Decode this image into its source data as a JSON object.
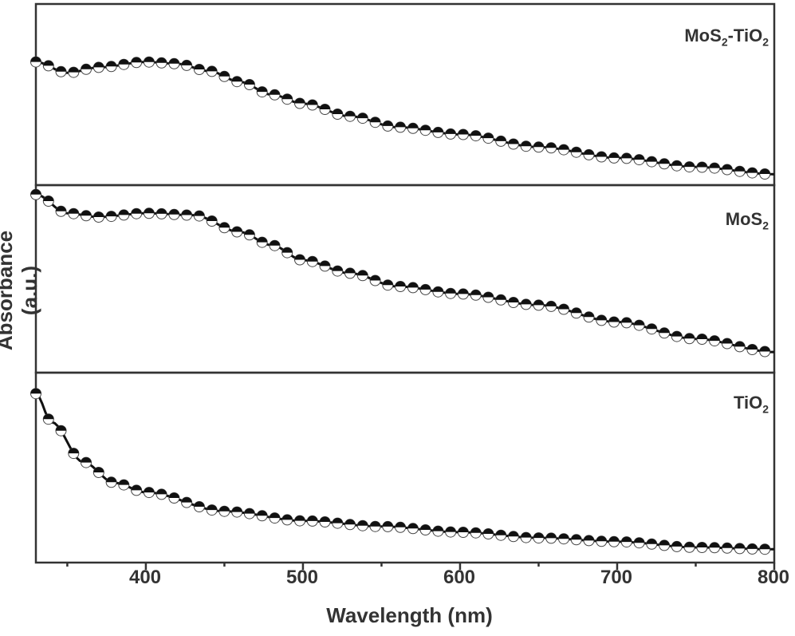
{
  "chart_data": {
    "type": "line",
    "title": "",
    "xlabel": "Wavelength (nm)",
    "ylabel": "Absorbance (a.u.)",
    "xlim": [
      330,
      800
    ],
    "x_ticks": [
      400,
      500,
      600,
      700,
      800
    ],
    "x_minor_ticks": [
      350,
      450,
      550,
      650,
      750
    ],
    "grid": false,
    "layout": "three vertically stacked panels sharing x-axis, no y tick labels",
    "marker": "half-filled circle (black top, white bottom)",
    "panels": [
      {
        "name": "MoS2-TiO2",
        "label_main": "MoS",
        "label_sub1": "2",
        "label_mid": "-TiO",
        "label_sub2": "2",
        "x": [
          330,
          350,
          370,
          400,
          420,
          440,
          460,
          480,
          500,
          530,
          560,
          600,
          650,
          700,
          750,
          800
        ],
        "values": [
          0.68,
          0.62,
          0.65,
          0.68,
          0.67,
          0.63,
          0.57,
          0.5,
          0.45,
          0.38,
          0.32,
          0.28,
          0.21,
          0.15,
          0.1,
          0.06
        ]
      },
      {
        "name": "MoS2",
        "label_main": "MoS",
        "label_sub1": "2",
        "x": [
          330,
          350,
          370,
          400,
          430,
          460,
          480,
          500,
          530,
          560,
          600,
          650,
          700,
          750,
          800
        ],
        "values": [
          0.95,
          0.85,
          0.83,
          0.85,
          0.84,
          0.75,
          0.68,
          0.6,
          0.53,
          0.46,
          0.42,
          0.36,
          0.27,
          0.18,
          0.11
        ]
      },
      {
        "name": "TiO2",
        "label_main": "TiO",
        "label_sub1": "2",
        "x": [
          330,
          340,
          360,
          380,
          400,
          450,
          500,
          550,
          600,
          650,
          700,
          750,
          800
        ],
        "values": [
          0.89,
          0.74,
          0.53,
          0.42,
          0.37,
          0.27,
          0.22,
          0.19,
          0.16,
          0.13,
          0.11,
          0.08,
          0.07
        ]
      }
    ]
  },
  "axes": {
    "xlabel": "Wavelength (nm)",
    "ylabel": "Absorbance (a.u.)",
    "tick_labels": [
      "400",
      "500",
      "600",
      "700",
      "800"
    ]
  },
  "colors": {
    "line": "#111111",
    "axis": "#333333",
    "marker_fill_bottom": "#ffffff"
  }
}
